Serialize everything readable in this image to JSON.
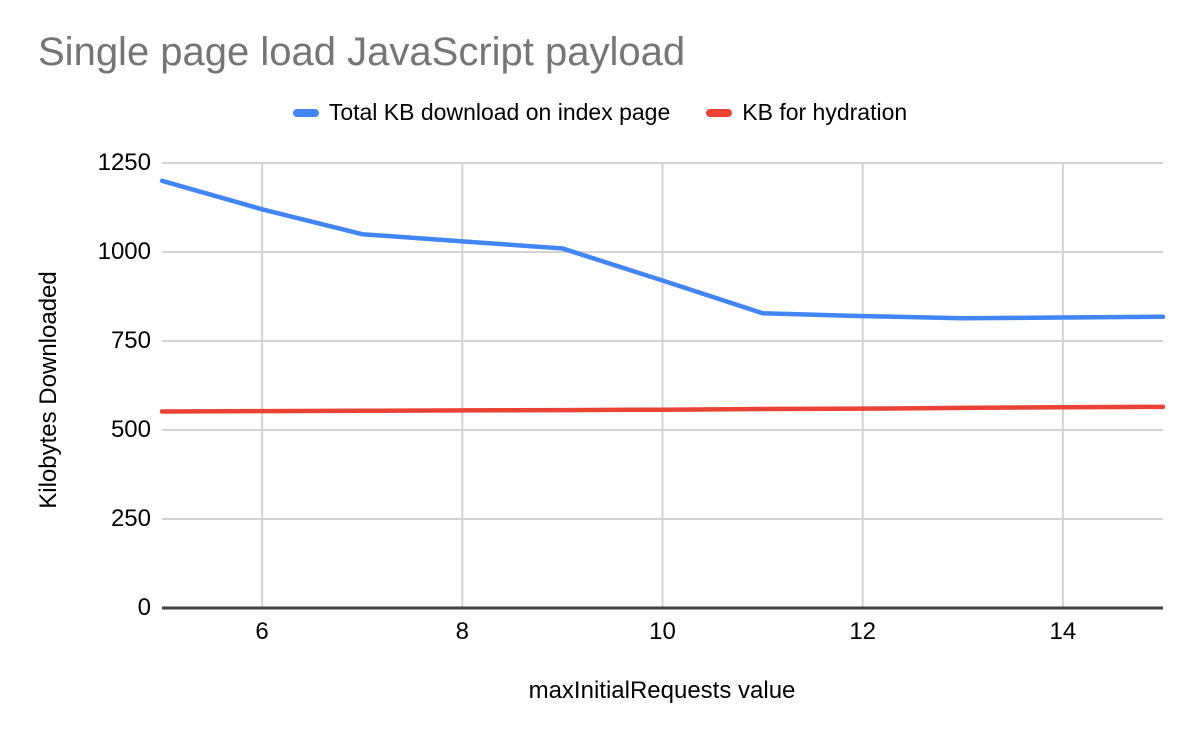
{
  "chart_data": {
    "type": "line",
    "title": "Single page load JavaScript payload",
    "xlabel": "maxInitialRequests value",
    "ylabel": "Kilobytes Downloaded",
    "x": [
      5,
      6,
      7,
      8,
      9,
      10,
      11,
      12,
      13,
      14,
      15
    ],
    "series": [
      {
        "name": "Total KB download on index page",
        "color": "#4285F4",
        "values": [
          1200,
          1120,
          1050,
          1030,
          1010,
          920,
          828,
          820,
          814,
          816,
          818
        ]
      },
      {
        "name": "KB for hydration",
        "color": "#EA4335",
        "values": [
          552,
          553,
          554,
          555,
          556,
          557,
          559,
          560,
          562,
          564,
          565
        ]
      }
    ],
    "xlim": [
      5,
      15
    ],
    "ylim": [
      0,
      1250
    ],
    "xticks": [
      6,
      8,
      10,
      12,
      14
    ],
    "yticks": [
      0,
      250,
      500,
      750,
      1000,
      1250
    ],
    "grid": true,
    "legend_position": "top",
    "grid_color": "#d3d3d3",
    "axis_color": "#444444",
    "title_color": "#757575",
    "label_color": "#000000"
  }
}
